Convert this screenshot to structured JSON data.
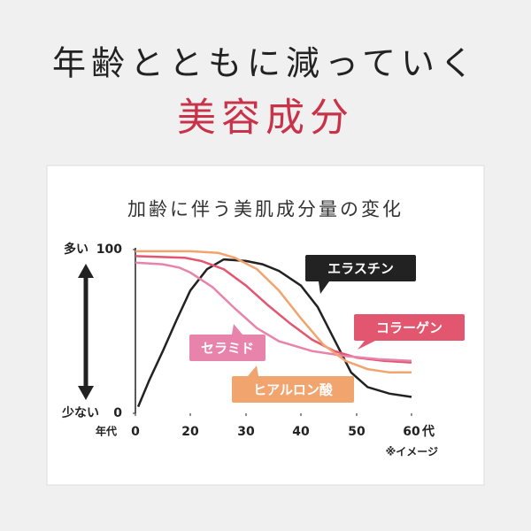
{
  "title": "年齢とともに減っていく",
  "subtitle": "美容成分",
  "chart_data": {
    "type": "line",
    "title": "加齢に伴う美肌成分量の変化",
    "y_high_label": "多い",
    "y_low_label": "少ない",
    "x_label": "年代",
    "x_unit": "代",
    "note": "※イメージ",
    "xlim": [
      0,
      60
    ],
    "xticks": [
      0,
      20,
      30,
      40,
      50,
      60
    ],
    "ylim": [
      0,
      100
    ],
    "yticks": [
      0,
      100
    ],
    "series": [
      {
        "name": "エラスチン",
        "color": "#222222",
        "x": [
          1,
          5,
          10,
          15,
          20,
          23,
          26,
          30,
          33,
          36,
          40,
          43,
          46,
          49,
          52,
          56,
          60
        ],
        "values": [
          4,
          20,
          38,
          57,
          75,
          88,
          94,
          93,
          91,
          87,
          78,
          65,
          45,
          25,
          16,
          12,
          10
        ]
      },
      {
        "name": "コラーゲン",
        "color": "#e2566f",
        "x": [
          0,
          18,
          22,
          26,
          30,
          34,
          38,
          42,
          46,
          50,
          55,
          60
        ],
        "values": [
          96,
          95,
          93,
          88,
          78,
          66,
          55,
          45,
          38,
          34,
          32,
          31
        ]
      },
      {
        "name": "セラミド",
        "color": "#e883ab",
        "x": [
          0,
          10,
          16,
          20,
          24,
          28,
          32,
          36,
          42,
          48,
          54,
          60
        ],
        "values": [
          92,
          91,
          89,
          86,
          77,
          64,
          52,
          44,
          38,
          35,
          33,
          32
        ]
      },
      {
        "name": "ヒアルロン酸",
        "color": "#f2a46e",
        "x": [
          0,
          20,
          25,
          28,
          32,
          36,
          40,
          44,
          48,
          52,
          56,
          60
        ],
        "values": [
          99,
          99,
          98,
          95,
          88,
          75,
          58,
          42,
          32,
          27,
          25,
          25
        ]
      }
    ]
  }
}
